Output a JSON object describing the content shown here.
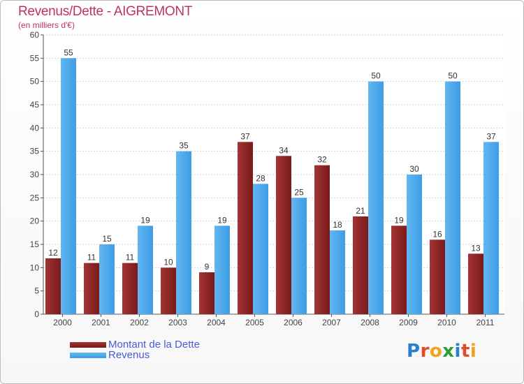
{
  "title": "Revenus/Dette - AIGREMONT",
  "subtitle": "(en milliers d'€)",
  "legend": {
    "debt_label": "Montant de la Dette",
    "revenue_label": "Revenus"
  },
  "logo": {
    "text": "Proxiti",
    "letters": [
      {
        "ch": "P",
        "color": "#2b7fd1"
      },
      {
        "ch": "r",
        "color": "#e14a2b"
      },
      {
        "ch": "o",
        "color": "#f3a31b"
      },
      {
        "ch": "x",
        "color": "#2e9d3a"
      },
      {
        "ch": "i",
        "color": "#2b7fd1"
      },
      {
        "ch": "t",
        "color": "#e14a2b"
      },
      {
        "ch": "i",
        "color": "#f3a31b"
      }
    ]
  },
  "colors": {
    "debt": "#7a1a1a",
    "debt_light": "#a23434",
    "revenue": "#3d9de6",
    "revenue_light": "#62b6f0",
    "title": "#c0306a",
    "legend_text": "#4a5bd6"
  },
  "chart_data": {
    "type": "bar",
    "title": "Revenus/Dette - AIGREMONT",
    "subtitle": "(en milliers d'€)",
    "categories": [
      "2000",
      "2001",
      "2002",
      "2003",
      "2004",
      "2005",
      "2006",
      "2007",
      "2008",
      "2009",
      "2010",
      "2011"
    ],
    "series": [
      {
        "name": "Montant de la Dette",
        "values": [
          12,
          11,
          11,
          10,
          9,
          37,
          34,
          32,
          21,
          19,
          16,
          13
        ]
      },
      {
        "name": "Revenus",
        "values": [
          55,
          15,
          19,
          35,
          19,
          28,
          25,
          18,
          50,
          30,
          50,
          37
        ]
      }
    ],
    "ylim": [
      0,
      60
    ],
    "yticks": [
      0,
      5,
      10,
      15,
      20,
      25,
      30,
      35,
      40,
      45,
      50,
      55,
      60
    ],
    "grid": true,
    "legend_position": "bottom-left"
  }
}
